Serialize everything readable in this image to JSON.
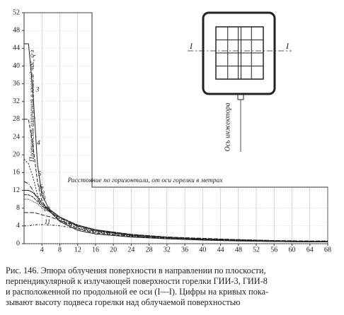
{
  "chart_data": {
    "type": "line",
    "y_label": "Плотность излучения в ккал/м² час, q·з",
    "x_label": "Расстояние по горизонтали, от оси горелки в метрах",
    "x": [
      0,
      1,
      2,
      3,
      4,
      6,
      8,
      12,
      16,
      24,
      32,
      40,
      48,
      56,
      64,
      68
    ],
    "series": [
      {
        "name": "3",
        "color": "#222222",
        "values": [
          45,
          45,
          34,
          18,
          11,
          7,
          5,
          3,
          2.2,
          1.5,
          1.1,
          0.8,
          0.6,
          0.5,
          0.4,
          0.4
        ]
      },
      {
        "name": "4",
        "color": "#222222",
        "values": [
          28,
          28,
          22,
          14,
          9.5,
          7,
          5.2,
          3.3,
          2.4,
          1.6,
          1.2,
          0.9,
          0.7,
          0.5,
          0.4,
          0.4
        ]
      },
      {
        "name": "5",
        "color": "#222222",
        "values": [
          19,
          18,
          15,
          11,
          9,
          7,
          5.5,
          3.5,
          2.6,
          1.7,
          1.2,
          0.9,
          0.7,
          0.5,
          0.4,
          0.4
        ]
      },
      {
        "name": "6",
        "color": "#222222",
        "values": [
          14,
          13.5,
          12,
          10,
          8.5,
          7,
          5.8,
          3.8,
          2.8,
          1.8,
          1.3,
          1,
          0.8,
          0.6,
          0.5,
          0.5
        ]
      },
      {
        "name": "7",
        "color": "#222222",
        "values": [
          12,
          12,
          11.5,
          10.5,
          9,
          7.5,
          6,
          4,
          3,
          1.9,
          1.4,
          1,
          0.8,
          0.6,
          0.5,
          0.5
        ]
      },
      {
        "name": "8",
        "color": "#222222",
        "values": [
          11,
          11,
          10.5,
          9.5,
          8.5,
          7.3,
          6,
          4.2,
          3.1,
          2,
          1.4,
          1.1,
          0.8,
          0.6,
          0.5,
          0.5
        ]
      },
      {
        "name": "9",
        "color": "#222222",
        "values": [
          10,
          10,
          9.5,
          9,
          8,
          7,
          5.8,
          4.2,
          3.2,
          2.1,
          1.5,
          1.1,
          0.9,
          0.7,
          0.5,
          0.5
        ]
      },
      {
        "name": "10",
        "color": "#222222",
        "values": [
          7,
          7,
          7,
          6.8,
          6.5,
          6,
          5.2,
          4,
          3.1,
          2.1,
          1.5,
          1.2,
          0.9,
          0.7,
          0.6,
          0.6
        ]
      },
      {
        "name": "11",
        "color": "#222222",
        "values": [
          4,
          4,
          4.2,
          4.3,
          4.3,
          4.2,
          4,
          3.4,
          2.8,
          2,
          1.5,
          1.2,
          0.9,
          0.7,
          0.6,
          0.6
        ]
      }
    ],
    "xlim": [
      0,
      68
    ],
    "xticks": [
      4,
      8,
      12,
      16,
      20,
      24,
      28,
      32,
      36,
      40,
      44,
      48,
      52,
      56,
      60,
      64,
      68
    ],
    "ylim": [
      0,
      52
    ],
    "yticks": [
      0,
      4,
      8,
      12,
      16,
      20,
      24,
      28,
      32,
      36,
      40,
      44,
      48,
      52
    ],
    "grid": true
  },
  "diagram": {
    "left_label": "I",
    "right_label": "I",
    "axis_label": "Ось инжектора"
  },
  "caption": [
    "Рис. 146. Эпюра облучения поверхности в направлении по плоскости,",
    "перпендикулярной к излучающей поверхности горелки ГИИ-3, ГИИ-8",
    "и расположенной по продольной ее оси (I—I). Цифры на кривых пока-",
    "зывают высоту подвеса горелки над облучаемой поверхностью"
  ]
}
